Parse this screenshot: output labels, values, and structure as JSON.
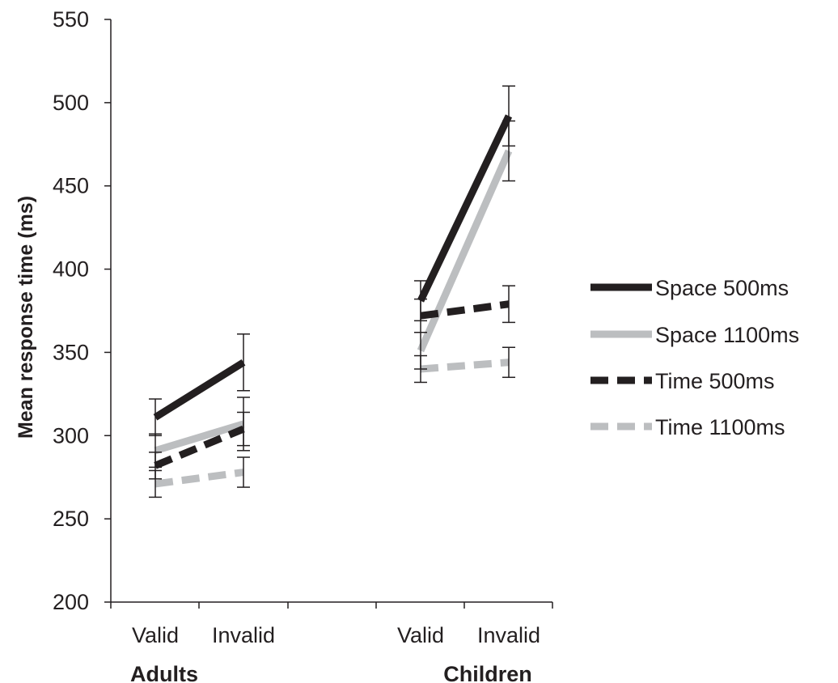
{
  "chart_data": {
    "type": "line",
    "title": "",
    "ylabel": "Mean response time (ms)",
    "xlabel": "",
    "ylim": [
      200,
      550
    ],
    "yticks": [
      200,
      250,
      300,
      350,
      400,
      450,
      500,
      550
    ],
    "grid": false,
    "legend_position": "right",
    "groups": [
      {
        "label": "Adults",
        "categories": [
          "Valid",
          "Invalid"
        ]
      },
      {
        "label": "Children",
        "categories": [
          "Valid",
          "Invalid"
        ]
      }
    ],
    "series": [
      {
        "name": "Space 500ms",
        "color": "#231f20",
        "dash": "solid",
        "adults": [
          311,
          344
        ],
        "adults_err": [
          11,
          17
        ],
        "children": [
          381,
          492
        ],
        "children_err": [
          12,
          18
        ]
      },
      {
        "name": "Space 1100ms",
        "color": "#bcbec0",
        "dash": "solid",
        "adults": [
          291,
          307
        ],
        "adults_err": [
          10,
          16
        ],
        "children": [
          351,
          471
        ],
        "children_err": [
          11,
          18
        ]
      },
      {
        "name": "Time 500ms",
        "color": "#231f20",
        "dash": "dashed",
        "adults": [
          282,
          304
        ],
        "adults_err": [
          8,
          10
        ],
        "children": [
          372,
          379
        ],
        "children_err": [
          10,
          11
        ]
      },
      {
        "name": "Time 1100ms",
        "color": "#bcbec0",
        "dash": "dashed",
        "adults": [
          271,
          278
        ],
        "adults_err": [
          8,
          9
        ],
        "children": [
          340,
          344
        ],
        "children_err": [
          8,
          9
        ]
      }
    ]
  }
}
